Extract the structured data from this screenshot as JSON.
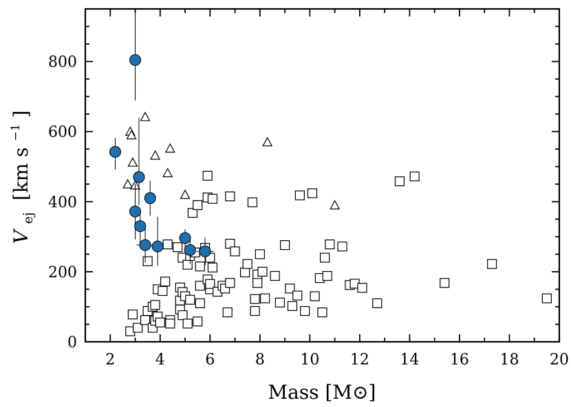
{
  "chart_data": {
    "type": "scatter",
    "xlabel": "Mass [M⊙]",
    "ylabel_main": "V",
    "ylabel_sub": "ej",
    "ylabel_units": "[km s",
    "ylabel_exp": "−1",
    "ylabel_close": "]",
    "xlim": [
      1,
      20
    ],
    "ylim": [
      0,
      950
    ],
    "x_ticks": [
      2,
      4,
      6,
      8,
      10,
      12,
      14,
      16,
      18,
      20
    ],
    "y_ticks": [
      0,
      200,
      400,
      600,
      800
    ],
    "grid": false,
    "series": [
      {
        "marker": "square",
        "color": "#000000",
        "points": [
          [
            2.8,
            30
          ],
          [
            2.9,
            78
          ],
          [
            3.1,
            40
          ],
          [
            3.4,
            62
          ],
          [
            3.5,
            88
          ],
          [
            3.5,
            230
          ],
          [
            3.7,
            100
          ],
          [
            3.7,
            40
          ],
          [
            3.8,
            60
          ],
          [
            3.8,
            105
          ],
          [
            3.9,
            150
          ],
          [
            3.9,
            72
          ],
          [
            4.0,
            55
          ],
          [
            4.1,
            145
          ],
          [
            4.2,
            172
          ],
          [
            4.3,
            278
          ],
          [
            4.4,
            62
          ],
          [
            4.4,
            52
          ],
          [
            4.7,
            270
          ],
          [
            4.8,
            155
          ],
          [
            4.8,
            118
          ],
          [
            4.8,
            92
          ],
          [
            4.9,
            142
          ],
          [
            4.9,
            240
          ],
          [
            4.9,
            76
          ],
          [
            5.0,
            130
          ],
          [
            5.1,
            220
          ],
          [
            5.1,
            52
          ],
          [
            5.2,
            245
          ],
          [
            5.2,
            120
          ],
          [
            5.3,
            368
          ],
          [
            5.4,
            255
          ],
          [
            5.5,
            58
          ],
          [
            5.5,
            390
          ],
          [
            5.6,
            110
          ],
          [
            5.6,
            160
          ],
          [
            5.6,
            215
          ],
          [
            5.8,
            268
          ],
          [
            5.9,
            474
          ],
          [
            5.9,
            412
          ],
          [
            5.9,
            178
          ],
          [
            6.0,
            150
          ],
          [
            6.0,
            165
          ],
          [
            6.0,
            240
          ],
          [
            6.1,
            408
          ],
          [
            6.1,
            212
          ],
          [
            6.3,
            143
          ],
          [
            6.5,
            160
          ],
          [
            6.6,
            152
          ],
          [
            6.7,
            84
          ],
          [
            6.8,
            168
          ],
          [
            6.8,
            415
          ],
          [
            6.8,
            280
          ],
          [
            7.0,
            258
          ],
          [
            7.4,
            198
          ],
          [
            7.5,
            222
          ],
          [
            7.7,
            398
          ],
          [
            7.8,
            88
          ],
          [
            7.8,
            122
          ],
          [
            7.9,
            192
          ],
          [
            7.9,
            168
          ],
          [
            8.0,
            250
          ],
          [
            8.1,
            200
          ],
          [
            8.2,
            124
          ],
          [
            8.6,
            188
          ],
          [
            8.8,
            112
          ],
          [
            9.0,
            276
          ],
          [
            9.2,
            152
          ],
          [
            9.3,
            102
          ],
          [
            9.5,
            132
          ],
          [
            9.6,
            418
          ],
          [
            9.8,
            88
          ],
          [
            10.1,
            424
          ],
          [
            10.2,
            130
          ],
          [
            10.4,
            182
          ],
          [
            10.5,
            84
          ],
          [
            10.6,
            240
          ],
          [
            10.7,
            188
          ],
          [
            10.8,
            278
          ],
          [
            11.3,
            272
          ],
          [
            11.6,
            162
          ],
          [
            11.8,
            166
          ],
          [
            12.1,
            154
          ],
          [
            12.7,
            110
          ],
          [
            13.6,
            458
          ],
          [
            14.2,
            472
          ],
          [
            15.4,
            168
          ],
          [
            17.3,
            222
          ],
          [
            19.5,
            124
          ]
        ]
      },
      {
        "marker": "triangle",
        "color": "#000000",
        "points": [
          [
            2.7,
            448
          ],
          [
            2.8,
            598
          ],
          [
            2.85,
            588
          ],
          [
            2.9,
            510
          ],
          [
            3.0,
            445
          ],
          [
            3.4,
            640
          ],
          [
            3.8,
            530
          ],
          [
            4.3,
            480
          ],
          [
            4.4,
            550
          ],
          [
            5.0,
            418
          ],
          [
            8.3,
            568
          ],
          [
            11.0,
            388
          ]
        ]
      },
      {
        "marker": "circle",
        "color": "#1f6fad",
        "points": [
          [
            2.2,
            542
          ],
          [
            3.0,
            804
          ],
          [
            3.0,
            372
          ],
          [
            3.15,
            470
          ],
          [
            3.2,
            330
          ],
          [
            3.4,
            276
          ],
          [
            3.6,
            410
          ],
          [
            3.9,
            272
          ],
          [
            5.0,
            296
          ],
          [
            5.2,
            262
          ],
          [
            5.8,
            258
          ]
        ],
        "yerr_low": [
          50,
          115,
          80,
          80,
          50,
          50,
          50,
          55,
          30,
          40,
          40
        ],
        "yerr_high": [
          40,
          135,
          80,
          170,
          50,
          60,
          50,
          85,
          25,
          40,
          40
        ],
        "xerr": [
          0,
          0.18,
          0,
          0.15,
          0.22,
          0.35,
          0.18,
          0.25,
          0.2,
          0.2,
          0.35
        ]
      }
    ]
  }
}
